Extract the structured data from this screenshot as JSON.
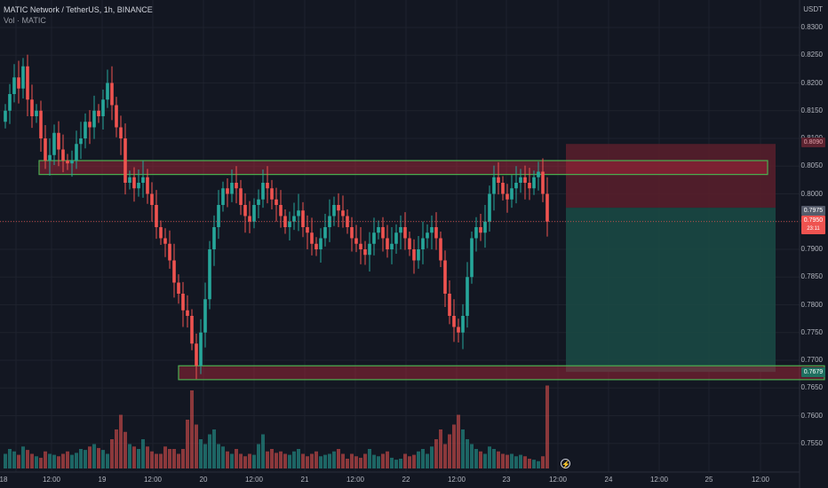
{
  "header": {
    "title": "MATIC Network / TetherUS, 1h, BINANCE",
    "volume_label": "Vol · MATIC"
  },
  "price_axis": {
    "currency": "USDT",
    "labels": [
      "0.8300",
      "0.8250",
      "0.8200",
      "0.8150",
      "0.8100",
      "0.8050",
      "0.8000",
      "0.7950",
      "0.7900",
      "0.7850",
      "0.7800",
      "0.7750",
      "0.7700",
      "0.7650",
      "0.7600",
      "0.7550"
    ]
  },
  "time_axis": {
    "labels": [
      "18",
      "12:00",
      "19",
      "12:00",
      "20",
      "12:00",
      "21",
      "12:00",
      "22",
      "12:00",
      "23",
      "12:00",
      "24",
      "12:00",
      "25",
      "12:00"
    ]
  },
  "price_tags": {
    "stop": "0.8090",
    "entry": "0.7975",
    "current": "0.7950",
    "current_sub": "23:11",
    "target": "0.7679"
  },
  "colors": {
    "up": "#26a69a",
    "down": "#ef5350",
    "zone_border": "#4caf50",
    "stop_zone": "#5b1e2b",
    "target_zone": "#1a4844"
  },
  "chart_data": {
    "type": "candlestick",
    "symbol": "MATIC/USDT",
    "interval": "1h",
    "exchange": "BINANCE",
    "y_range": [
      0.753,
      0.834
    ],
    "resistance_zone": [
      0.8035,
      0.806
    ],
    "support_zone": [
      0.7665,
      0.769
    ],
    "short_position": {
      "entry": 0.7975,
      "stop": 0.809,
      "target": 0.7679
    },
    "last_price": 0.795,
    "series": [
      {
        "name": "Price",
        "closes": [
          0.815,
          0.818,
          0.821,
          0.819,
          0.823,
          0.817,
          0.814,
          0.815,
          0.81,
          0.806,
          0.807,
          0.811,
          0.808,
          0.806,
          0.8055,
          0.806,
          0.809,
          0.81,
          0.813,
          0.812,
          0.815,
          0.814,
          0.817,
          0.82,
          0.816,
          0.812,
          0.81,
          0.802,
          0.803,
          0.801,
          0.802,
          0.803,
          0.8,
          0.798,
          0.794,
          0.792,
          0.791,
          0.788,
          0.784,
          0.782,
          0.779,
          0.778,
          0.773,
          0.769,
          0.775,
          0.781,
          0.79,
          0.794,
          0.798,
          0.801,
          0.8,
          0.802,
          0.801,
          0.798,
          0.796,
          0.795,
          0.798,
          0.799,
          0.802,
          0.801,
          0.799,
          0.798,
          0.796,
          0.794,
          0.795,
          0.796,
          0.797,
          0.794,
          0.793,
          0.791,
          0.79,
          0.792,
          0.794,
          0.796,
          0.798,
          0.797,
          0.796,
          0.794,
          0.792,
          0.791,
          0.79,
          0.789,
          0.791,
          0.793,
          0.794,
          0.792,
          0.79,
          0.791,
          0.793,
          0.794,
          0.792,
          0.79,
          0.788,
          0.79,
          0.792,
          0.793,
          0.794,
          0.792,
          0.788,
          0.782,
          0.778,
          0.776,
          0.775,
          0.778,
          0.785,
          0.792,
          0.794,
          0.793,
          0.795,
          0.8,
          0.803,
          0.802,
          0.8,
          0.799,
          0.801,
          0.802,
          0.803,
          0.802,
          0.801,
          0.803,
          0.804,
          0.8,
          0.795
        ]
      },
      {
        "name": "Vol · MATIC",
        "values": [
          30,
          40,
          35,
          28,
          45,
          38,
          30,
          25,
          22,
          35,
          30,
          28,
          25,
          30,
          35,
          28,
          32,
          40,
          38,
          45,
          50,
          42,
          38,
          30,
          60,
          80,
          110,
          75,
          50,
          45,
          40,
          60,
          45,
          35,
          30,
          30,
          45,
          40,
          40,
          30,
          40,
          100,
          160,
          90,
          60,
          50,
          70,
          80,
          50,
          45,
          35,
          30,
          40,
          30,
          25,
          30,
          28,
          50,
          70,
          35,
          40,
          32,
          35,
          30,
          28,
          35,
          40,
          30,
          25,
          30,
          35,
          25,
          28,
          30,
          35,
          40,
          30,
          20,
          30,
          25,
          22,
          30,
          40,
          28,
          25,
          30,
          35,
          22,
          18,
          20,
          30,
          25,
          28,
          35,
          40,
          30,
          45,
          60,
          80,
          50,
          70,
          90,
          110,
          80,
          60,
          50,
          40,
          35,
          30,
          45,
          40,
          35,
          30,
          28,
          30,
          25,
          28,
          25,
          20,
          18,
          15,
          25,
          170
        ]
      }
    ]
  }
}
